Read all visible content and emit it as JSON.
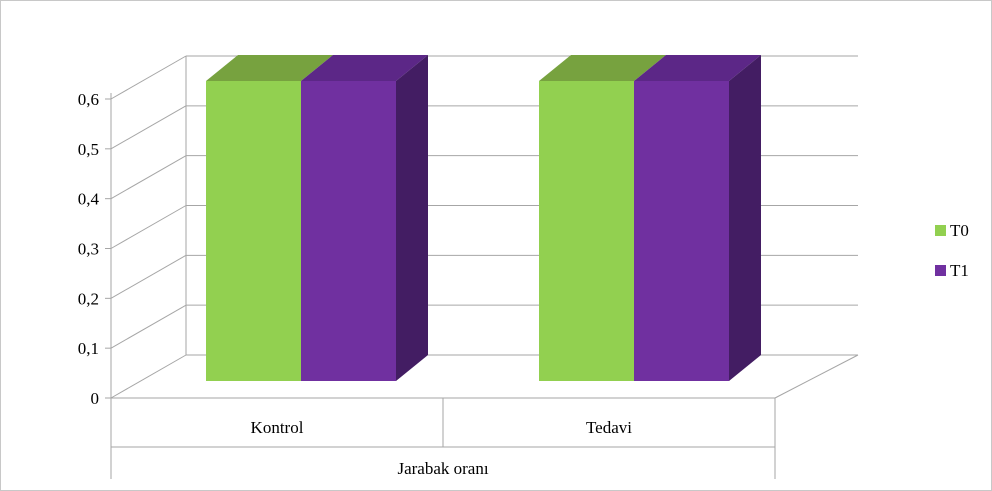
{
  "chart_data": {
    "type": "bar",
    "view": "3d-clustered-column",
    "categories": [
      "Kontrol",
      "Tedavi"
    ],
    "group_label": "Jarabak oranı",
    "series": [
      {
        "name": "T0",
        "values": [
          0.6,
          0.6
        ],
        "color": "#92d050",
        "top_color": "#77a23f",
        "side_color": "#5f8233"
      },
      {
        "name": "T1",
        "values": [
          0.6,
          0.6
        ],
        "color": "#7030a0",
        "top_color": "#5c2787",
        "side_color": "#431d63"
      }
    ],
    "ylim": [
      0,
      0.6
    ],
    "yticks": [
      "0",
      "0,1",
      "0,2",
      "0,3",
      "0,4",
      "0,5",
      "0,6"
    ],
    "title": "",
    "xlabel": "",
    "ylabel": "",
    "grid": true,
    "legend_position": "right",
    "gridline_color": "#a6a6a6"
  }
}
